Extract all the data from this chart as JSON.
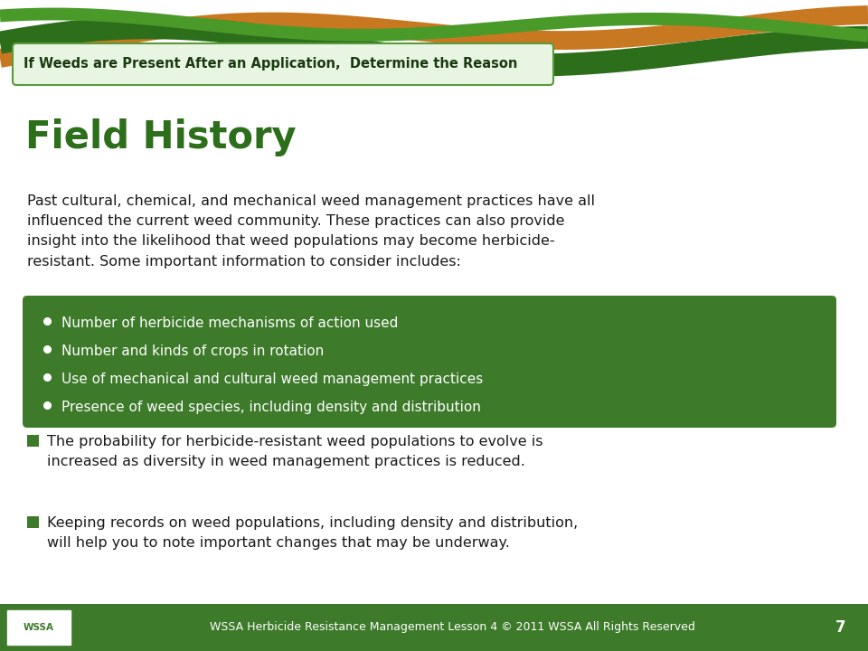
{
  "bg_color": "#ffffff",
  "footer_color": "#3d7a2a",
  "footer_text": "WSSA Herbicide Resistance Management Lesson 4 © 2011 WSSA All Rights Reserved",
  "footer_page": "7",
  "footer_text_color": "#ffffff",
  "title_text": "Field History",
  "title_color": "#2d6e1a",
  "subtitle_box_color": "#e8f5e3",
  "subtitle_box_border": "#5a9a3a",
  "subtitle_text": "If Weeds are Present After an Application,  Determine the Reason",
  "subtitle_text_color": "#1a3a10",
  "body_text_color": "#1a1a1a",
  "green_box_color": "#3d7a2a",
  "green_box_text_color": "#ffffff",
  "green_box_items": [
    "Number of herbicide mechanisms of action used",
    "Number and kinds of crops in rotation",
    "Use of mechanical and cultural weed management practices",
    "Presence of weed species, including density and distribution"
  ],
  "bullet_items": [
    "The probability for herbicide-resistant weed populations to evolve is\nincreased as diversity in weed management practices is reduced.",
    "Keeping records on weed populations, including density and distribution,\nwill help you to note important changes that may be underway."
  ],
  "bullet_color": "#3d7a2a",
  "bullet_text_color": "#1a1a1a",
  "wave_orange": "#c87820",
  "wave_green_dark": "#2d6e1a",
  "wave_green_light": "#4a9a2a"
}
